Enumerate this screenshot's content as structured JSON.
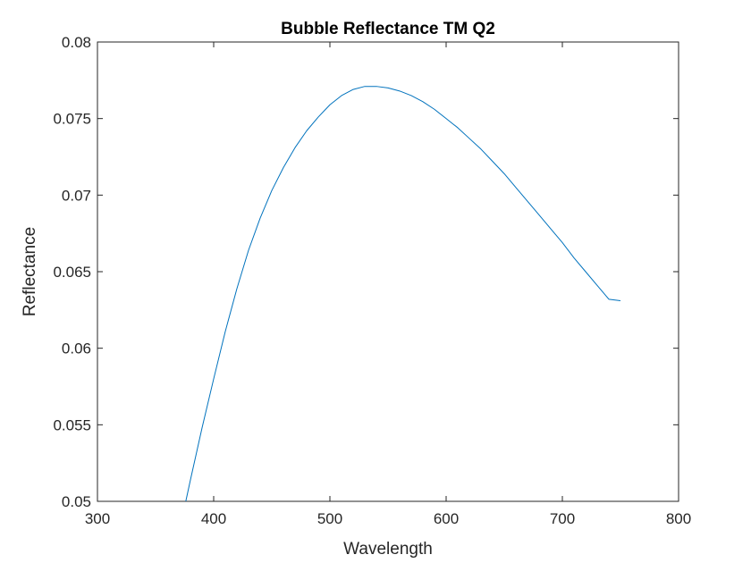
{
  "chart_data": {
    "type": "line",
    "title": "Bubble Reflectance TM Q2",
    "xlabel": "Wavelength",
    "ylabel": "Reflectance",
    "xlim": [
      300,
      800
    ],
    "ylim": [
      0.05,
      0.08
    ],
    "xticks": [
      "300",
      "400",
      "500",
      "600",
      "700",
      "800"
    ],
    "yticks": [
      "0.05",
      "0.055",
      "0.06",
      "0.065",
      "0.07",
      "0.075",
      "0.08"
    ],
    "grid": false,
    "series": [
      {
        "color": "#0072BD",
        "x": [
          376,
          380,
          390,
          400,
          410,
          420,
          430,
          440,
          450,
          460,
          470,
          480,
          490,
          500,
          510,
          520,
          530,
          540,
          550,
          560,
          570,
          580,
          590,
          600,
          610,
          620,
          630,
          640,
          650,
          660,
          670,
          680,
          690,
          700,
          710,
          720,
          730,
          740,
          750
        ],
        "y": [
          0.05,
          0.0514,
          0.0548,
          0.058,
          0.0611,
          0.0639,
          0.0664,
          0.0685,
          0.0703,
          0.0718,
          0.0731,
          0.0742,
          0.0751,
          0.0759,
          0.0765,
          0.0769,
          0.0771,
          0.0771,
          0.077,
          0.0768,
          0.0765,
          0.0761,
          0.0756,
          0.075,
          0.0744,
          0.0737,
          0.073,
          0.0722,
          0.0714,
          0.0705,
          0.0696,
          0.0687,
          0.0678,
          0.0669,
          0.0659,
          0.065,
          0.0641,
          0.0632,
          0.0631
        ]
      }
    ]
  }
}
